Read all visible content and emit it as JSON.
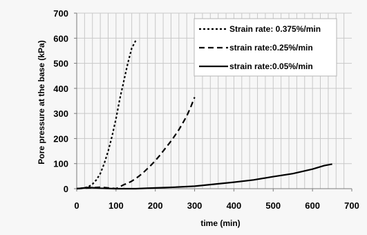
{
  "chart_data": {
    "type": "line",
    "xlabel": "time (min)",
    "ylabel": "Pore pressure at the base  (kPa)",
    "xlim": [
      0,
      700
    ],
    "ylim": [
      0,
      700
    ],
    "xticks": [
      0,
      100,
      200,
      300,
      400,
      500,
      600,
      700
    ],
    "yticks": [
      0,
      100,
      200,
      300,
      400,
      500,
      600,
      700
    ],
    "grid": true,
    "legend_position": "top-right",
    "series": [
      {
        "name": "Strain rate: 0.375%/min",
        "dash": "dotted",
        "x": [
          0,
          20,
          30,
          40,
          50,
          60,
          70,
          80,
          90,
          100,
          110,
          120,
          130,
          140,
          150
        ],
        "y": [
          0,
          3,
          8,
          18,
          35,
          60,
          100,
          150,
          210,
          280,
          360,
          430,
          500,
          560,
          590
        ]
      },
      {
        "name": "strain rate:0.25%/min",
        "dash": "dashed",
        "x": [
          0,
          30,
          60,
          90,
          100,
          110,
          120,
          130,
          140,
          150,
          160,
          170,
          180,
          190,
          200,
          210,
          220,
          230,
          240,
          250,
          260,
          270,
          280,
          290,
          300
        ],
        "y": [
          0,
          3,
          6,
          2,
          0,
          8,
          16,
          22,
          30,
          40,
          52,
          65,
          80,
          95,
          112,
          130,
          150,
          170,
          190,
          212,
          235,
          262,
          290,
          325,
          365
        ]
      },
      {
        "name": "strain rate:0.05%/min",
        "dash": "solid",
        "x": [
          0,
          30,
          60,
          100,
          150,
          200,
          250,
          300,
          350,
          400,
          450,
          500,
          550,
          600,
          630,
          650
        ],
        "y": [
          0,
          5,
          2,
          0,
          0,
          3,
          6,
          10,
          18,
          26,
          35,
          48,
          60,
          78,
          92,
          98
        ]
      }
    ]
  }
}
